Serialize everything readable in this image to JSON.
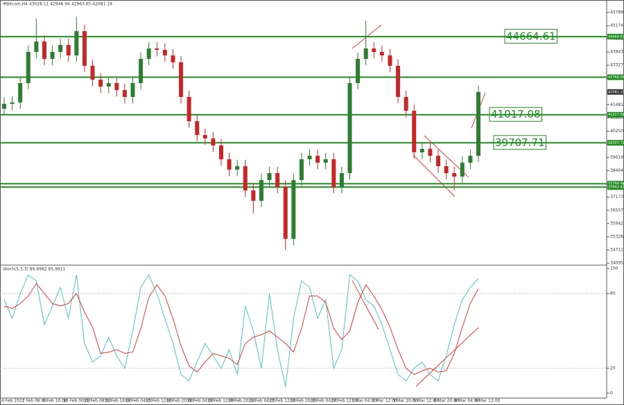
{
  "chart_data": {
    "type": "candlestick",
    "title": "#Bitcoin,H4  43028.11 42946.94 42963.65 42081.19",
    "last_price": 42081.19,
    "ylim": [
      33999,
      46371
    ],
    "yticks": [
      34095.95,
      {
        "value": 34711.4,
        "label": "34711.40"
      },
      35326.85,
      {
        "value": 35942.3,
        "label": "35942.30"
      },
      36557.75,
      {
        "value": 37173.2,
        "label": "37173.20"
      },
      37788.65,
      {
        "value": 38404.1,
        "label": "38404.10"
      },
      39019.55,
      {
        "value": 39635,
        "label": "39635.00"
      },
      40250.45,
      {
        "value": 40865.9,
        "label": "40865.90"
      },
      41481.35,
      {
        "value": 42096.8,
        "label": "42096.80"
      },
      42712.25,
      {
        "value": 43327.7,
        "label": "43327.70"
      },
      43943.15,
      {
        "value": 44558.6,
        "label": "44558.60"
      },
      45174.05,
      {
        "value": 45789.5,
        "label": "45789.50"
      }
    ],
    "x_labels": [
      "4 Feb 2022",
      "7 Feb 08:00",
      "8 Feb 16:00",
      "10 Feb 00:00",
      "11 Feb 08:00",
      "12 Feb 16:00",
      "14 Feb 04:00",
      "15 Feb 12:00",
      "16 Feb 20:00",
      "18 Feb 04:00",
      "19 Feb 12:00",
      "20 Feb 20:00",
      "22 Feb 04:00",
      "23 Feb 12:00",
      "24 Feb 20:00",
      "26 Feb 04:00",
      "27 Feb 12:00",
      "1 Mar 04:00",
      "2 Mar 12:00",
      "3 Mar 20:00",
      "5 Mar 12:00",
      "6 Mar 20:00",
      "8 Mar 04:00",
      "9 Mar 12:00"
    ],
    "up_color": "#2e7d32",
    "down_color": "#c62828",
    "level_color": "#1f8c1f",
    "open": [
      41300,
      41525,
      41590,
      42494,
      43948,
      44432,
      43625,
      43948,
      44271,
      43786,
      44917,
      43302,
      42655,
      42332,
      42494,
      42171,
      41848,
      42494,
      43625,
      44109,
      44045,
      43786,
      43463,
      41848,
      40717,
      40071,
      39909,
      39586,
      38940,
      38455,
      38617,
      37486,
      37001,
      37970,
      38294,
      37647,
      35224,
      37970,
      38940,
      39101,
      38778,
      38940,
      37647,
      38294,
      42494,
      43625,
      44109,
      43948,
      43786,
      43302,
      41848,
      41202,
      39263,
      39424,
      39101,
      38617,
      38294,
      38132,
      38778,
      39101
    ],
    "high": [
      41825,
      41890,
      42794,
      44248,
      45500,
      44732,
      44248,
      44571,
      44571,
      45600,
      45217,
      43602,
      42955,
      42794,
      42794,
      42471,
      42794,
      43925,
      44409,
      44409,
      44345,
      44086,
      43763,
      42148,
      41017,
      40371,
      40209,
      39886,
      39240,
      38917,
      38917,
      37786,
      38270,
      38594,
      38594,
      37947,
      38270,
      39240,
      39401,
      39401,
      39240,
      39240,
      38594,
      42794,
      43925,
      45400,
      44409,
      44248,
      44086,
      43602,
      42148,
      41502,
      39724,
      39724,
      39401,
      38917,
      38594,
      39078,
      39401,
      42381
    ],
    "low": [
      41000,
      41225,
      41290,
      42194,
      43648,
      43325,
      43325,
      43648,
      43486,
      43486,
      43002,
      42355,
      42032,
      42032,
      41871,
      41548,
      41548,
      42194,
      43325,
      43745,
      43486,
      43163,
      41548,
      40417,
      39771,
      39609,
      39286,
      38640,
      38155,
      38155,
      37186,
      36400,
      36701,
      37670,
      37347,
      34700,
      34924,
      37670,
      38640,
      38478,
      38478,
      37347,
      37347,
      37994,
      42194,
      43325,
      43648,
      43486,
      43002,
      41548,
      40902,
      38963,
      38963,
      38801,
      38317,
      37994,
      37500,
      37832,
      38478,
      38801
    ],
    "close": [
      41525,
      41590,
      42494,
      43948,
      44432,
      43625,
      43948,
      44271,
      43786,
      44917,
      43302,
      42655,
      42332,
      42494,
      42171,
      41848,
      42494,
      43625,
      44109,
      44045,
      43786,
      43463,
      41848,
      40717,
      40071,
      39909,
      39586,
      38940,
      38455,
      38617,
      37486,
      37001,
      37970,
      38294,
      37647,
      35224,
      37970,
      38940,
      39101,
      38778,
      38940,
      37647,
      38294,
      42494,
      43625,
      44109,
      43948,
      43786,
      43302,
      41848,
      41202,
      39263,
      39424,
      39101,
      38617,
      38294,
      38132,
      38778,
      39101,
      42081
    ],
    "levels": [
      {
        "value": 44664.61,
        "label": "44664.61"
      },
      {
        "value": 42768.06
      },
      {
        "value": 41017.08,
        "label": "41017.08"
      },
      {
        "value": 39707.71,
        "label": "39707.71"
      },
      {
        "value": 37798.84
      },
      {
        "value": 37642.43
      }
    ],
    "stoch": {
      "title": "Stoch(5,3,3) 89.6962 85.9611",
      "ylim": [
        0,
        100
      ],
      "yticks": [
        0,
        20,
        80,
        100
      ],
      "series": [
        {
          "color": "#4fc3c8",
          "values": [
            75,
            60,
            80,
            95,
            90,
            55,
            70,
            85,
            60,
            95,
            40,
            25,
            30,
            45,
            30,
            20,
            50,
            85,
            95,
            80,
            60,
            40,
            15,
            10,
            25,
            40,
            30,
            20,
            35,
            15,
            70,
            50,
            20,
            80,
            35,
            5,
            60,
            90,
            85,
            60,
            75,
            20,
            35,
            95,
            90,
            75,
            70,
            55,
            35,
            15,
            10,
            20,
            25,
            15,
            10,
            30,
            55,
            75,
            85,
            92
          ]
        },
        {
          "color": "#e53935",
          "values": [
            70,
            68,
            72,
            78,
            88,
            80,
            72,
            70,
            72,
            80,
            65,
            53,
            32,
            33,
            35,
            32,
            33,
            52,
            77,
            87,
            78,
            60,
            38,
            22,
            17,
            25,
            32,
            30,
            28,
            23,
            40,
            45,
            47,
            50,
            45,
            40,
            33,
            52,
            78,
            78,
            73,
            52,
            43,
            50,
            73,
            87,
            78,
            67,
            53,
            35,
            20,
            15,
            18,
            20,
            17,
            18,
            32,
            53,
            72,
            84
          ]
        }
      ]
    }
  }
}
